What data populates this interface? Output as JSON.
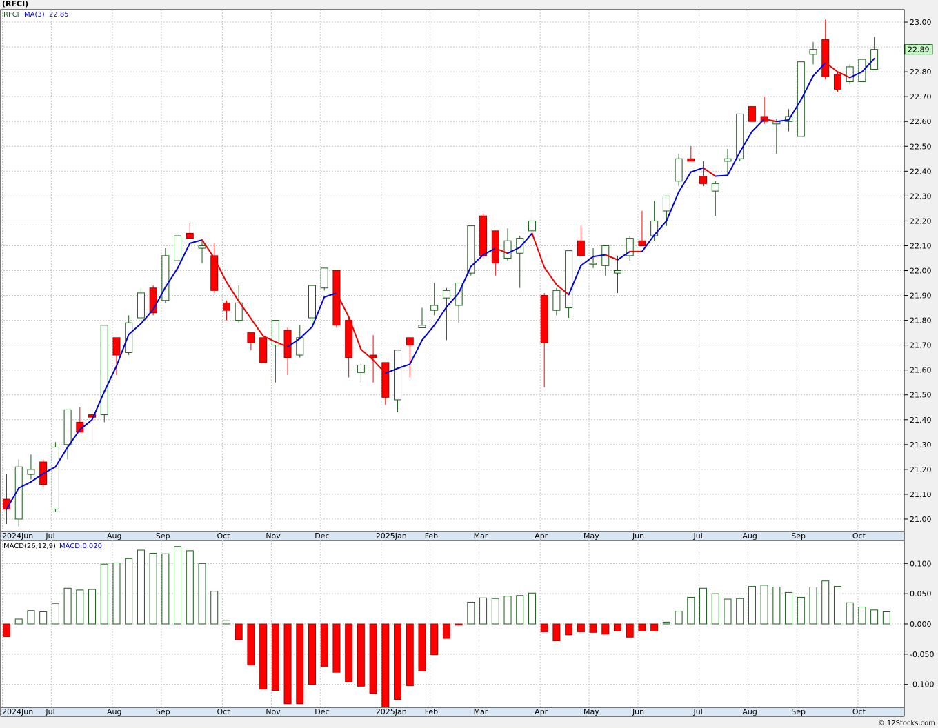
{
  "title": "(RFCI)",
  "footer": "© 12Stocks.com",
  "colors": {
    "up": "#1a5e1a",
    "down": "#ff0000",
    "ma_up": "#0000dd",
    "ma_down": "#ee0000",
    "grid": "#c8c8c8",
    "price_box": "#c8f7c8"
  },
  "chart_data": [
    {
      "type": "candlestick",
      "legend": {
        "symbol": "RFCI",
        "ma_label": "MA(3)",
        "ma_value": "22.85"
      },
      "last_price_label": "22.89",
      "ylim": [
        20.95,
        23.05
      ],
      "yticks": [
        "21.00",
        "21.10",
        "21.20",
        "21.30",
        "21.40",
        "21.50",
        "21.60",
        "21.70",
        "21.80",
        "21.90",
        "22.00",
        "22.10",
        "22.20",
        "22.30",
        "22.40",
        "22.50",
        "22.60",
        "22.70",
        "22.80",
        "22.90",
        "23.00"
      ],
      "x_labels": [
        {
          "label": "2024Jun",
          "i": 0
        },
        {
          "label": "Jul",
          "i": 4
        },
        {
          "label": "Aug",
          "i": 9
        },
        {
          "label": "Sep",
          "i": 13
        },
        {
          "label": "Oct",
          "i": 18
        },
        {
          "label": "Nov",
          "i": 22
        },
        {
          "label": "Dec",
          "i": 26
        },
        {
          "label": "2025Jan",
          "i": 31
        },
        {
          "label": "Feb",
          "i": 35
        },
        {
          "label": "Mar",
          "i": 39
        },
        {
          "label": "Apr",
          "i": 44
        },
        {
          "label": "May",
          "i": 48
        },
        {
          "label": "Jun",
          "i": 52
        },
        {
          "label": "Jul",
          "i": 57
        },
        {
          "label": "Aug",
          "i": 61
        },
        {
          "label": "Sep",
          "i": 65
        },
        {
          "label": "Oct",
          "i": 70
        }
      ],
      "candles": [
        {
          "o": 21.08,
          "h": 21.18,
          "l": 20.98,
          "c": 21.04
        },
        {
          "o": 21.0,
          "h": 21.24,
          "l": 20.97,
          "c": 21.21
        },
        {
          "o": 21.18,
          "h": 21.26,
          "l": 21.16,
          "c": 21.2
        },
        {
          "o": 21.23,
          "h": 21.24,
          "l": 21.13,
          "c": 21.14
        },
        {
          "o": 21.04,
          "h": 21.31,
          "l": 21.03,
          "c": 21.29
        },
        {
          "o": 21.3,
          "h": 21.44,
          "l": 21.24,
          "c": 21.44
        },
        {
          "o": 21.39,
          "h": 21.45,
          "l": 21.35,
          "c": 21.35
        },
        {
          "o": 21.42,
          "h": 21.44,
          "l": 21.3,
          "c": 21.41
        },
        {
          "o": 21.42,
          "h": 21.78,
          "l": 21.39,
          "c": 21.78
        },
        {
          "o": 21.73,
          "h": 21.73,
          "l": 21.58,
          "c": 21.66
        },
        {
          "o": 21.67,
          "h": 21.82,
          "l": 21.66,
          "c": 21.79
        },
        {
          "o": 21.81,
          "h": 21.93,
          "l": 21.8,
          "c": 21.91
        },
        {
          "o": 21.93,
          "h": 21.94,
          "l": 21.82,
          "c": 21.83
        },
        {
          "o": 21.88,
          "h": 22.09,
          "l": 21.87,
          "c": 22.06
        },
        {
          "o": 22.04,
          "h": 22.14,
          "l": 22.04,
          "c": 22.14
        },
        {
          "o": 22.15,
          "h": 22.19,
          "l": 22.13,
          "c": 22.13
        },
        {
          "o": 22.09,
          "h": 22.12,
          "l": 22.03,
          "c": 22.1
        },
        {
          "o": 22.06,
          "h": 22.11,
          "l": 21.91,
          "c": 21.92
        },
        {
          "o": 21.87,
          "h": 21.88,
          "l": 21.8,
          "c": 21.84
        },
        {
          "o": 21.8,
          "h": 21.94,
          "l": 21.79,
          "c": 21.87
        },
        {
          "o": 21.75,
          "h": 21.75,
          "l": 21.68,
          "c": 21.71
        },
        {
          "o": 21.73,
          "h": 21.73,
          "l": 21.63,
          "c": 21.63
        },
        {
          "o": 21.7,
          "h": 21.8,
          "l": 21.55,
          "c": 21.8
        },
        {
          "o": 21.76,
          "h": 21.77,
          "l": 21.58,
          "c": 21.65
        },
        {
          "o": 21.66,
          "h": 21.78,
          "l": 21.65,
          "c": 21.73
        },
        {
          "o": 21.81,
          "h": 21.94,
          "l": 21.78,
          "c": 21.94
        },
        {
          "o": 21.93,
          "h": 22.01,
          "l": 21.92,
          "c": 22.01
        },
        {
          "o": 22.0,
          "h": 22.0,
          "l": 21.77,
          "c": 21.78
        },
        {
          "o": 21.8,
          "h": 21.81,
          "l": 21.57,
          "c": 21.65
        },
        {
          "o": 21.59,
          "h": 21.63,
          "l": 21.55,
          "c": 21.62
        },
        {
          "o": 21.66,
          "h": 21.74,
          "l": 21.55,
          "c": 21.65
        },
        {
          "o": 21.63,
          "h": 21.63,
          "l": 21.46,
          "c": 21.49
        },
        {
          "o": 21.48,
          "h": 21.68,
          "l": 21.43,
          "c": 21.68
        },
        {
          "o": 21.73,
          "h": 21.73,
          "l": 21.57,
          "c": 21.7
        },
        {
          "o": 21.77,
          "h": 21.85,
          "l": 21.77,
          "c": 21.78
        },
        {
          "o": 21.84,
          "h": 21.95,
          "l": 21.82,
          "c": 21.86
        },
        {
          "o": 21.89,
          "h": 21.93,
          "l": 21.72,
          "c": 21.92
        },
        {
          "o": 21.86,
          "h": 21.95,
          "l": 21.79,
          "c": 21.95
        },
        {
          "o": 21.99,
          "h": 22.18,
          "l": 21.98,
          "c": 22.18
        },
        {
          "o": 22.22,
          "h": 22.23,
          "l": 22.05,
          "c": 22.06
        },
        {
          "o": 22.16,
          "h": 22.16,
          "l": 21.98,
          "c": 22.03
        },
        {
          "o": 22.05,
          "h": 22.17,
          "l": 22.04,
          "c": 22.12
        },
        {
          "o": 22.07,
          "h": 22.14,
          "l": 21.93,
          "c": 22.13
        },
        {
          "o": 22.16,
          "h": 22.32,
          "l": 22.14,
          "c": 22.2
        },
        {
          "o": 21.9,
          "h": 21.91,
          "l": 21.53,
          "c": 21.71
        },
        {
          "o": 21.84,
          "h": 21.93,
          "l": 21.82,
          "c": 21.92
        },
        {
          "o": 21.85,
          "h": 22.08,
          "l": 21.81,
          "c": 22.08
        },
        {
          "o": 22.12,
          "h": 22.18,
          "l": 22.06,
          "c": 22.06
        },
        {
          "o": 22.03,
          "h": 22.09,
          "l": 22.01,
          "c": 22.03
        },
        {
          "o": 22.02,
          "h": 22.1,
          "l": 21.98,
          "c": 22.1
        },
        {
          "o": 21.99,
          "h": 22.06,
          "l": 21.91,
          "c": 22.0
        },
        {
          "o": 22.06,
          "h": 22.14,
          "l": 22.04,
          "c": 22.13
        },
        {
          "o": 22.12,
          "h": 22.24,
          "l": 22.1,
          "c": 22.1
        },
        {
          "o": 22.14,
          "h": 22.28,
          "l": 22.12,
          "c": 22.2
        },
        {
          "o": 22.24,
          "h": 22.3,
          "l": 22.18,
          "c": 22.3
        },
        {
          "o": 22.36,
          "h": 22.47,
          "l": 22.34,
          "c": 22.45
        },
        {
          "o": 22.45,
          "h": 22.5,
          "l": 22.44,
          "c": 22.44
        },
        {
          "o": 22.38,
          "h": 22.44,
          "l": 22.34,
          "c": 22.35
        },
        {
          "o": 22.32,
          "h": 22.36,
          "l": 22.22,
          "c": 22.35
        },
        {
          "o": 22.44,
          "h": 22.49,
          "l": 22.38,
          "c": 22.45
        },
        {
          "o": 22.45,
          "h": 22.63,
          "l": 22.44,
          "c": 22.63
        },
        {
          "o": 22.66,
          "h": 22.66,
          "l": 22.6,
          "c": 22.6
        },
        {
          "o": 22.62,
          "h": 22.7,
          "l": 22.59,
          "c": 22.6
        },
        {
          "o": 22.59,
          "h": 22.61,
          "l": 22.47,
          "c": 22.6
        },
        {
          "o": 22.6,
          "h": 22.65,
          "l": 22.56,
          "c": 22.62
        },
        {
          "o": 22.54,
          "h": 22.84,
          "l": 22.54,
          "c": 22.84
        },
        {
          "o": 22.87,
          "h": 22.92,
          "l": 22.83,
          "c": 22.89
        },
        {
          "o": 22.93,
          "h": 23.01,
          "l": 22.77,
          "c": 22.78
        },
        {
          "o": 22.79,
          "h": 22.8,
          "l": 22.72,
          "c": 22.73
        },
        {
          "o": 22.76,
          "h": 22.83,
          "l": 22.75,
          "c": 22.82
        },
        {
          "o": 22.76,
          "h": 22.85,
          "l": 22.76,
          "c": 22.85
        },
        {
          "o": 22.81,
          "h": 22.94,
          "l": 22.81,
          "c": 22.89
        }
      ]
    },
    {
      "type": "bar",
      "legend": {
        "label": "MACD(26,12,9)",
        "value_label": "MACD:0.020"
      },
      "ylim": [
        -0.138,
        0.138
      ],
      "yticks": [
        "0.100",
        "0.050",
        "0.000",
        "-0.050",
        "-0.100"
      ],
      "x_labels": [
        {
          "label": "2024Jun",
          "i": 0
        },
        {
          "label": "Jul",
          "i": 4
        },
        {
          "label": "Aug",
          "i": 9
        },
        {
          "label": "Sep",
          "i": 13
        },
        {
          "label": "Oct",
          "i": 18
        },
        {
          "label": "Nov",
          "i": 22
        },
        {
          "label": "Dec",
          "i": 26
        },
        {
          "label": "2025Jan",
          "i": 31
        },
        {
          "label": "Feb",
          "i": 35
        },
        {
          "label": "Mar",
          "i": 39
        },
        {
          "label": "Apr",
          "i": 44
        },
        {
          "label": "May",
          "i": 48
        },
        {
          "label": "Jun",
          "i": 52
        },
        {
          "label": "Jul",
          "i": 57
        },
        {
          "label": "Aug",
          "i": 61
        },
        {
          "label": "Sep",
          "i": 65
        },
        {
          "label": "Oct",
          "i": 70
        }
      ],
      "values": [
        -0.021,
        0.008,
        0.022,
        0.02,
        0.034,
        0.059,
        0.056,
        0.057,
        0.099,
        0.101,
        0.108,
        0.122,
        0.117,
        0.116,
        0.128,
        0.121,
        0.1,
        0.054,
        0.006,
        -0.026,
        -0.068,
        -0.108,
        -0.11,
        -0.132,
        -0.132,
        -0.1,
        -0.07,
        -0.08,
        -0.096,
        -0.103,
        -0.115,
        -0.137,
        -0.125,
        -0.102,
        -0.078,
        -0.051,
        -0.024,
        -0.002,
        0.036,
        0.043,
        0.042,
        0.046,
        0.047,
        0.051,
        -0.013,
        -0.028,
        -0.018,
        -0.013,
        -0.014,
        -0.017,
        -0.012,
        -0.022,
        -0.012,
        -0.012,
        0.003,
        0.021,
        0.044,
        0.059,
        0.05,
        0.041,
        0.042,
        0.062,
        0.064,
        0.061,
        0.052,
        0.044,
        0.061,
        0.071,
        0.062,
        0.035,
        0.028,
        0.023,
        0.02
      ]
    }
  ]
}
